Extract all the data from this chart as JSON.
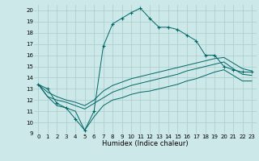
{
  "title": "",
  "xlabel": "Humidex (Indice chaleur)",
  "xlim": [
    -0.5,
    23.5
  ],
  "ylim": [
    9,
    20.5
  ],
  "yticks": [
    9,
    10,
    11,
    12,
    13,
    14,
    15,
    16,
    17,
    18,
    19,
    20
  ],
  "xticks": [
    0,
    1,
    2,
    3,
    4,
    5,
    6,
    7,
    8,
    9,
    10,
    11,
    12,
    13,
    14,
    15,
    16,
    17,
    18,
    19,
    20,
    21,
    22,
    23
  ],
  "bg_color": "#cde8e8",
  "grid_color": "#aacccc",
  "line_color": "#006666",
  "series_max": [
    13.4,
    13.0,
    11.7,
    11.3,
    10.3,
    9.3,
    11.0,
    16.8,
    18.8,
    19.3,
    19.8,
    20.2,
    19.3,
    18.5,
    18.5,
    18.3,
    17.8,
    17.3,
    16.0,
    16.0,
    15.0,
    14.7,
    14.5,
    14.5
  ],
  "series_avg_hi": [
    13.4,
    12.7,
    12.3,
    12.0,
    11.8,
    11.5,
    12.0,
    12.8,
    13.3,
    13.6,
    13.9,
    14.1,
    14.3,
    14.5,
    14.7,
    14.9,
    15.1,
    15.3,
    15.5,
    15.7,
    15.8,
    15.3,
    14.8,
    14.6
  ],
  "series_avg_lo": [
    13.4,
    12.3,
    12.0,
    11.8,
    11.5,
    11.2,
    11.7,
    12.2,
    12.7,
    13.0,
    13.3,
    13.5,
    13.7,
    13.9,
    14.1,
    14.3,
    14.6,
    14.8,
    15.0,
    15.2,
    15.4,
    14.8,
    14.3,
    14.2
  ],
  "series_min": [
    13.4,
    12.3,
    11.5,
    11.3,
    11.0,
    9.3,
    10.5,
    11.5,
    12.0,
    12.2,
    12.5,
    12.7,
    12.8,
    13.0,
    13.2,
    13.4,
    13.7,
    13.9,
    14.2,
    14.5,
    14.7,
    14.2,
    13.7,
    13.7
  ]
}
